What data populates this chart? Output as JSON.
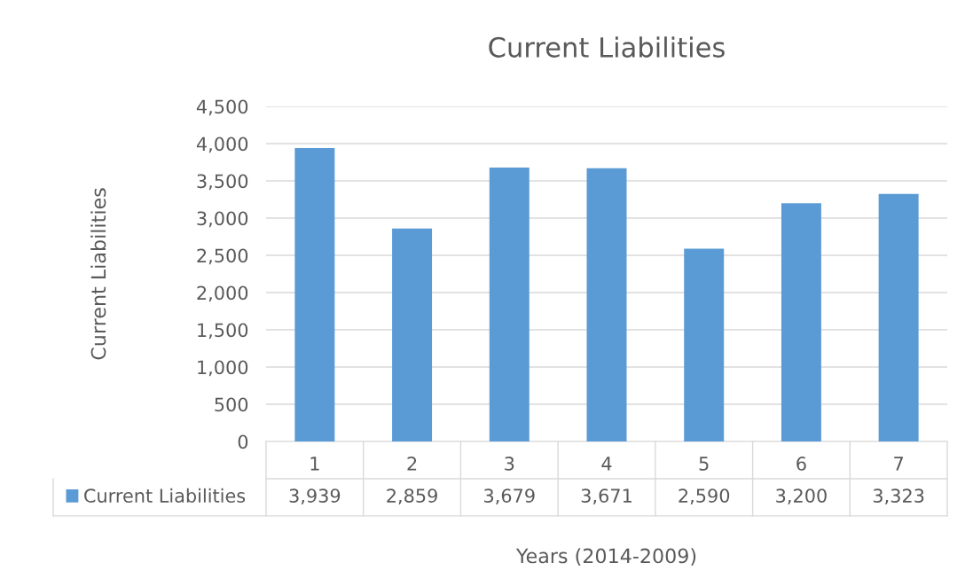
{
  "chart_data": {
    "type": "bar",
    "title": "Current Liabilities",
    "xlabel": "Years (2014-2009)",
    "ylabel": "Current Liabilities",
    "categories": [
      "1",
      "2",
      "3",
      "4",
      "5",
      "6",
      "7"
    ],
    "series": [
      {
        "name": "Current Liabilities",
        "color": "#5b9bd5",
        "values": [
          3939,
          2859,
          3679,
          3671,
          2590,
          3200,
          3323
        ],
        "value_labels": [
          "3,939",
          "2,859",
          "3,679",
          "3,671",
          "2,590",
          "3,200",
          "3,323"
        ]
      }
    ],
    "ylim": [
      0,
      4500
    ],
    "yticks": [
      {
        "value": 0,
        "label": "0"
      },
      {
        "value": 500,
        "label": "500"
      },
      {
        "value": 1000,
        "label": "1,000"
      },
      {
        "value": 1500,
        "label": "1,500"
      },
      {
        "value": 2000,
        "label": "2,000"
      },
      {
        "value": 2500,
        "label": "2,500"
      },
      {
        "value": 3000,
        "label": "3,000"
      },
      {
        "value": 3500,
        "label": "3,500"
      },
      {
        "value": 4000,
        "label": "4,000"
      },
      {
        "value": 4500,
        "label": "4,500"
      }
    ],
    "grid": "y",
    "legend": "bottom"
  }
}
